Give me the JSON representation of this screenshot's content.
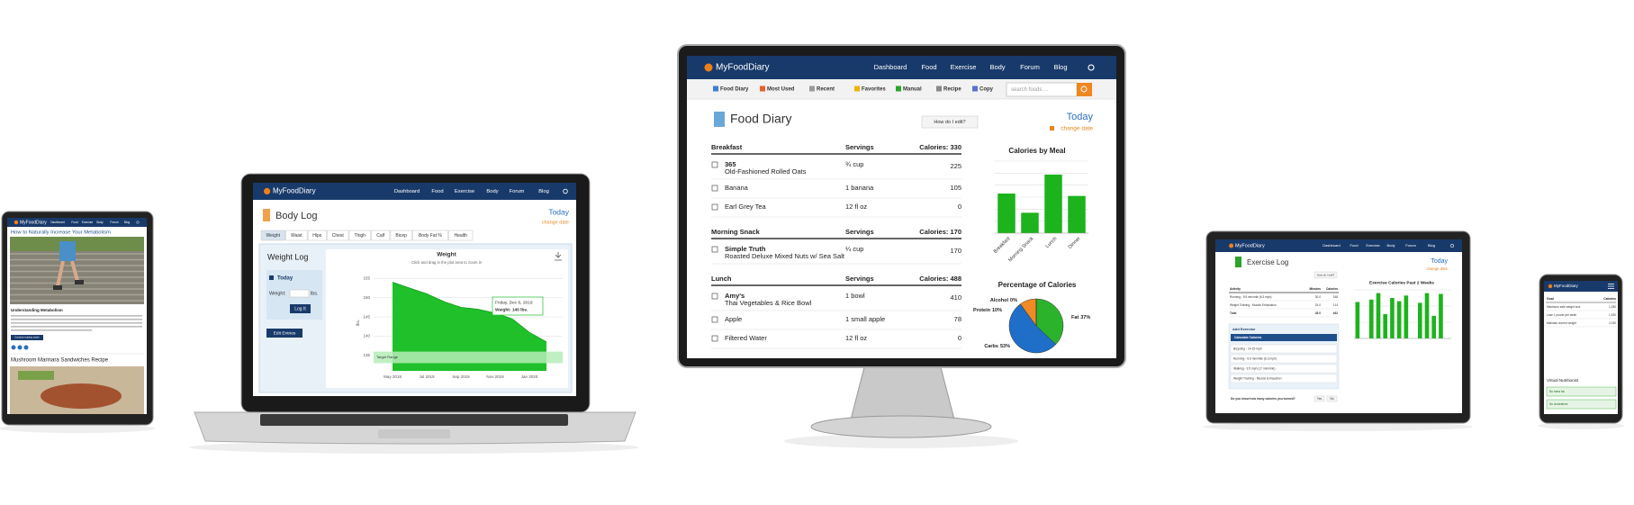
{
  "brand": "MyFoodDiary",
  "nav": [
    "Dashboard",
    "Food",
    "Exercise",
    "Body",
    "Forum",
    "Blog"
  ],
  "tablet_left": {
    "article_title": "How to Naturally Increase Your Metabolism",
    "subheading": "Understanding Metabolism",
    "button": "Continue reading article",
    "next_title": "Mushroom Marinara Sandwiches Recipe"
  },
  "laptop": {
    "title": "Body Log",
    "today": "Today",
    "change_date": "change date",
    "tabs": [
      "Weight",
      "Waist",
      "Hips",
      "Chest",
      "Thigh",
      "Calf",
      "Bicep",
      "Body Fat %",
      "Health"
    ],
    "panel_title": "Weight Log",
    "today_box": "Today",
    "weight_label": "Weight:",
    "unit": "lbs.",
    "log_button": "Log It",
    "edit_button": "Edit Entries",
    "chart": {
      "type": "line",
      "title": "Weight",
      "subtitle": "Click and drag in the plot area to zoom in",
      "y_label": "lbs.",
      "categories": [
        "May 2019",
        null,
        "Jul 2019",
        null,
        "Sep 2019",
        null,
        "Nov 2019",
        null,
        "Jan 2020",
        null
      ],
      "values": [
        154,
        152.5,
        151,
        149,
        147.5,
        147,
        146,
        144.5,
        141,
        138.5
      ],
      "color": "#1fc02a",
      "ylim": [
        131,
        156
      ],
      "yticks": [
        135,
        140,
        145,
        150,
        155
      ],
      "target_range": [
        133,
        136
      ],
      "target_label": "Target Range",
      "tooltip": [
        "Friday, Dec 6, 2019",
        "Weight: 145 lbs."
      ]
    }
  },
  "monitor": {
    "toolbar": [
      "Food Diary",
      "Most Used",
      "Recent",
      "Favorites",
      "Manual",
      "Recipe",
      "Copy"
    ],
    "search_placeholder": "search foods ...",
    "title": "Food Diary",
    "help_button": "How do I edit?",
    "today": "Today",
    "change_date": "change date",
    "meals": [
      {
        "name": "Breakfast",
        "servings": "Servings",
        "calories": "Calories: 330",
        "items": [
          {
            "food": [
              "365",
              "Old-Fashioned Rolled Oats"
            ],
            "serving": "¾ cup",
            "calories": 225
          },
          {
            "food": [
              "Banana"
            ],
            "serving": "1 banana",
            "calories": 105
          },
          {
            "food": [
              "Earl Grey Tea"
            ],
            "serving": "12 fl oz",
            "calories": 0
          }
        ]
      },
      {
        "name": "Morning Snack",
        "servings": "Servings",
        "calories": "Calories: 170",
        "items": [
          {
            "food": [
              "Simple Truth",
              "Roasted Deluxe Mixed Nuts w/ Sea Salt"
            ],
            "serving": "¼ cup",
            "calories": 170
          }
        ]
      },
      {
        "name": "Lunch",
        "servings": "Servings",
        "calories": "Calories: 488",
        "items": [
          {
            "food": [
              "Amy's",
              "Thai Vegetables & Rice Bowl"
            ],
            "serving": "1 bowl",
            "calories": 410
          },
          {
            "food": [
              "Apple"
            ],
            "serving": "1 small apple",
            "calories": 78
          },
          {
            "food": [
              "Filtered Water"
            ],
            "serving": "12 fl oz",
            "calories": 0
          }
        ]
      }
    ],
    "bar_chart": {
      "type": "bar",
      "title": "Calories by Meal",
      "categories": [
        "Breakfast",
        "Morning Snack",
        "Lunch",
        "Dinner"
      ],
      "values": [
        330,
        170,
        488,
        310
      ],
      "color": "#1db31d",
      "ylim": [
        0,
        600
      ],
      "yticks": [
        0,
        100,
        200,
        300,
        400,
        500,
        600
      ],
      "grid": true
    },
    "pie_chart": {
      "type": "pie",
      "title": "Percentage of Calories",
      "categories": [
        "Fat",
        "Carbs",
        "Protein",
        "Alcohol"
      ],
      "values": [
        37,
        53,
        10,
        0
      ],
      "value_labels": [
        "37%",
        "53%",
        "10%",
        "0%"
      ],
      "colors": [
        "#2bb32b",
        "#1f6ec8",
        "#f08a24",
        "#999999"
      ]
    }
  },
  "tablet_right": {
    "title": "Exercise Log",
    "help_button": "How do I edit?",
    "today": "Today",
    "change_date": "change date",
    "table": {
      "header": [
        "Activity",
        "Minutes",
        "Calories"
      ],
      "rows": [
        [
          "Running - 9.5 min/mile (6.3 mph)",
          "30.0",
          "348"
        ],
        [
          "Weight Training - Muscle Exhaustion",
          "15.0",
          "114"
        ],
        [
          "Total",
          "45.0",
          "462"
        ]
      ]
    },
    "add_title": "Add Exercise",
    "tab": "Calculate Calories",
    "activities": [
      "Bicycling - 14-15 mph",
      "Running - 9.5 min/mile (6.3 mph)",
      "Walking - 3.5 mph (17 min/mile)",
      "Weight Training - Muscle Exhaustion"
    ],
    "question": "Do you know how many calories you burned?",
    "answers": [
      "Yes",
      "No"
    ],
    "chart": {
      "type": "bar",
      "title": "Exercise Calories Past 2 Weeks",
      "categories": [
        null,
        null,
        null,
        null,
        null,
        null,
        null,
        null,
        null,
        null,
        null,
        null,
        null,
        null
      ],
      "values": [
        45,
        0,
        48,
        56,
        30,
        50,
        46,
        53,
        0,
        44,
        56,
        28,
        55,
        0
      ],
      "color": "#1db31d",
      "ylim": [
        0,
        60
      ],
      "yticks": [
        0,
        20,
        40,
        60
      ],
      "grid": true
    }
  },
  "phone_right": {
    "table_header": [
      "Goal",
      "Calories"
    ],
    "rows": [
      [
        "Maximum safe weight loss",
        "1,280"
      ],
      [
        "Lose 1 pound per week",
        "1,530"
      ],
      [
        "Maintain current weight",
        "2,030"
      ]
    ],
    "section": "Virtual Nutritionist",
    "notes": [
      "No trans fat",
      "No cholesterol"
    ]
  }
}
